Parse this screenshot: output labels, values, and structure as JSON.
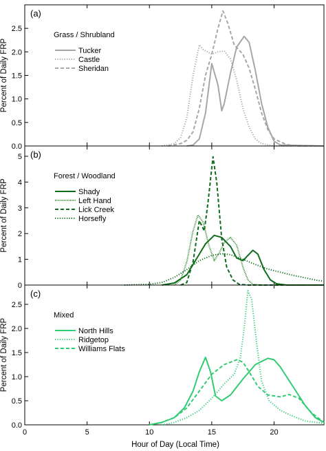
{
  "figure": {
    "xlabel": "Hour of Day (Local Time)",
    "ylabel": "Percent of Daily FRP",
    "x_ticks": [
      "0",
      "5",
      "10",
      "15",
      "20"
    ]
  },
  "chart_data": [
    {
      "type": "line",
      "panel_label": "(a)",
      "category": "Grass / Shrubland",
      "xlabel": "",
      "ylabel": "Percent of Daily FRP",
      "xlim": [
        0,
        24
      ],
      "ylim": [
        0,
        3.0
      ],
      "y_ticks": [
        "0.0",
        "0.5",
        "1.0",
        "1.5",
        "2.0",
        "2.5"
      ],
      "x_ticks": [
        0,
        5,
        10,
        15,
        20
      ],
      "grid": false,
      "legend_position": "upper-left",
      "series": [
        {
          "name": "Tucker",
          "color": "#a6a6a6",
          "dash": "solid",
          "points": [
            [
              13.0,
              0.0
            ],
            [
              13.5,
              0.02
            ],
            [
              14.0,
              0.15
            ],
            [
              14.5,
              0.7
            ],
            [
              15.0,
              1.75
            ],
            [
              15.5,
              1.3
            ],
            [
              15.8,
              0.75
            ],
            [
              16.0,
              0.9
            ],
            [
              16.5,
              1.55
            ],
            [
              17.0,
              2.1
            ],
            [
              17.6,
              2.33
            ],
            [
              18.0,
              2.2
            ],
            [
              18.5,
              1.6
            ],
            [
              19.0,
              0.9
            ],
            [
              19.5,
              0.4
            ],
            [
              20.0,
              0.1
            ],
            [
              20.5,
              0.02
            ],
            [
              24.0,
              0.0
            ]
          ]
        },
        {
          "name": "Castle",
          "color": "#a6a6a6",
          "dash": "dotted",
          "points": [
            [
              11.0,
              0.0
            ],
            [
              12.0,
              0.05
            ],
            [
              12.5,
              0.18
            ],
            [
              13.0,
              0.6
            ],
            [
              13.5,
              1.5
            ],
            [
              14.0,
              2.15
            ],
            [
              14.3,
              2.05
            ],
            [
              15.0,
              1.95
            ],
            [
              15.5,
              2.0
            ],
            [
              16.0,
              2.02
            ],
            [
              16.5,
              1.85
            ],
            [
              17.0,
              1.4
            ],
            [
              17.5,
              0.8
            ],
            [
              18.0,
              0.4
            ],
            [
              18.5,
              0.15
            ],
            [
              19.0,
              0.05
            ],
            [
              20.0,
              0.0
            ],
            [
              24.0,
              0.0
            ]
          ]
        },
        {
          "name": "Sheridan",
          "color": "#a6a6a6",
          "dash": "dashed",
          "points": [
            [
              11.5,
              0.0
            ],
            [
              12.5,
              0.05
            ],
            [
              13.0,
              0.12
            ],
            [
              13.5,
              0.3
            ],
            [
              14.0,
              0.8
            ],
            [
              14.5,
              1.5
            ],
            [
              15.0,
              1.95
            ],
            [
              15.5,
              2.5
            ],
            [
              15.9,
              2.87
            ],
            [
              16.3,
              2.6
            ],
            [
              16.8,
              2.15
            ],
            [
              17.5,
              1.95
            ],
            [
              18.0,
              1.65
            ],
            [
              18.5,
              1.2
            ],
            [
              19.0,
              0.7
            ],
            [
              19.5,
              0.35
            ],
            [
              20.0,
              0.15
            ],
            [
              21.0,
              0.03
            ],
            [
              22.0,
              0.0
            ],
            [
              24.0,
              0.0
            ]
          ]
        }
      ]
    },
    {
      "type": "line",
      "panel_label": "(b)",
      "category": "Forest / Woodland",
      "xlabel": "",
      "ylabel": "Percent of Daily FRP",
      "xlim": [
        0,
        24
      ],
      "ylim": [
        0,
        5.4
      ],
      "y_ticks": [
        "0",
        "1",
        "2",
        "3",
        "4",
        "5"
      ],
      "x_ticks": [
        0,
        5,
        10,
        15,
        20
      ],
      "grid": false,
      "legend_position": "upper-left",
      "series": [
        {
          "name": "Shady",
          "color": "#0d6b1a",
          "dash": "solid",
          "points": [
            [
              11.0,
              0.0
            ],
            [
              12.0,
              0.08
            ],
            [
              13.0,
              0.4
            ],
            [
              14.0,
              1.2
            ],
            [
              14.5,
              1.6
            ],
            [
              15.2,
              1.93
            ],
            [
              15.8,
              1.85
            ],
            [
              16.5,
              1.5
            ],
            [
              17.0,
              1.05
            ],
            [
              17.5,
              0.95
            ],
            [
              18.0,
              1.2
            ],
            [
              18.3,
              1.35
            ],
            [
              18.7,
              1.2
            ],
            [
              19.2,
              0.6
            ],
            [
              19.7,
              0.2
            ],
            [
              20.2,
              0.05
            ],
            [
              21.0,
              0.0
            ],
            [
              24.0,
              0.0
            ]
          ]
        },
        {
          "name": "Left Hand",
          "color": "#2e8a2e",
          "dash": "densedot",
          "points": [
            [
              12.0,
              0.0
            ],
            [
              12.5,
              0.2
            ],
            [
              13.0,
              0.9
            ],
            [
              13.5,
              2.1
            ],
            [
              13.9,
              2.72
            ],
            [
              14.3,
              2.45
            ],
            [
              14.8,
              1.5
            ],
            [
              15.2,
              0.95
            ],
            [
              15.6,
              1.25
            ],
            [
              16.0,
              1.65
            ],
            [
              16.5,
              1.85
            ],
            [
              17.0,
              1.55
            ],
            [
              17.5,
              0.7
            ],
            [
              17.9,
              0.2
            ],
            [
              18.3,
              0.03
            ],
            [
              19.0,
              0.0
            ],
            [
              24.0,
              0.0
            ]
          ]
        },
        {
          "name": "Lick Creek",
          "color": "#0d6b1a",
          "dash": "dashed",
          "points": [
            [
              12.5,
              0.0
            ],
            [
              13.0,
              0.1
            ],
            [
              13.5,
              0.9
            ],
            [
              14.0,
              2.5
            ],
            [
              14.4,
              2.1
            ],
            [
              14.7,
              3.2
            ],
            [
              15.1,
              4.98
            ],
            [
              15.4,
              4.0
            ],
            [
              15.8,
              1.8
            ],
            [
              16.2,
              0.7
            ],
            [
              16.7,
              0.2
            ],
            [
              17.2,
              0.03
            ],
            [
              18.0,
              0.0
            ],
            [
              24.0,
              0.0
            ]
          ]
        },
        {
          "name": "Horsefly",
          "color": "#0d6b1a",
          "dash": "dotted",
          "points": [
            [
              8.0,
              0.0
            ],
            [
              10.0,
              0.03
            ],
            [
              11.0,
              0.1
            ],
            [
              12.0,
              0.3
            ],
            [
              13.0,
              0.6
            ],
            [
              14.0,
              0.95
            ],
            [
              15.0,
              1.15
            ],
            [
              15.8,
              1.22
            ],
            [
              16.5,
              1.18
            ],
            [
              17.5,
              1.0
            ],
            [
              18.5,
              0.8
            ],
            [
              19.5,
              0.62
            ],
            [
              20.5,
              0.5
            ],
            [
              21.5,
              0.38
            ],
            [
              22.5,
              0.28
            ],
            [
              23.5,
              0.18
            ],
            [
              24.0,
              0.15
            ]
          ]
        }
      ]
    },
    {
      "type": "line",
      "panel_label": "(c)",
      "category": "Mixed",
      "xlabel": "Hour of Day (Local Time)",
      "ylabel": "Percent of Daily FRP",
      "xlim": [
        0,
        24
      ],
      "ylim": [
        0,
        2.9
      ],
      "y_ticks": [
        "0.0",
        "0.5",
        "1.0",
        "1.5",
        "2.0",
        "2.5"
      ],
      "x_ticks": [
        0,
        5,
        10,
        15,
        20
      ],
      "grid": false,
      "legend_position": "upper-left",
      "series": [
        {
          "name": "North Hills",
          "color": "#2ecc71",
          "dash": "solid",
          "points": [
            [
              10.0,
              0.0
            ],
            [
              11.0,
              0.05
            ],
            [
              12.0,
              0.15
            ],
            [
              12.8,
              0.35
            ],
            [
              13.5,
              0.7
            ],
            [
              14.0,
              1.1
            ],
            [
              14.5,
              1.4
            ],
            [
              14.9,
              1.1
            ],
            [
              15.3,
              0.6
            ],
            [
              15.8,
              0.5
            ],
            [
              16.5,
              0.62
            ],
            [
              17.5,
              0.95
            ],
            [
              18.5,
              1.25
            ],
            [
              19.5,
              1.38
            ],
            [
              20.0,
              1.35
            ],
            [
              20.5,
              1.2
            ],
            [
              21.5,
              0.8
            ],
            [
              22.5,
              0.4
            ],
            [
              23.3,
              0.15
            ],
            [
              24.0,
              0.05
            ]
          ]
        },
        {
          "name": "Ridgetop",
          "color": "#2ecc71",
          "dash": "dotted",
          "points": [
            [
              11.0,
              0.0
            ],
            [
              12.0,
              0.05
            ],
            [
              13.0,
              0.15
            ],
            [
              14.0,
              0.3
            ],
            [
              15.0,
              0.55
            ],
            [
              16.0,
              0.85
            ],
            [
              16.8,
              1.05
            ],
            [
              17.3,
              1.4
            ],
            [
              17.6,
              2.0
            ],
            [
              17.9,
              2.78
            ],
            [
              18.2,
              2.6
            ],
            [
              18.6,
              1.7
            ],
            [
              19.0,
              0.9
            ],
            [
              19.6,
              0.5
            ],
            [
              20.5,
              0.3
            ],
            [
              21.5,
              0.18
            ],
            [
              22.5,
              0.08
            ],
            [
              24.0,
              0.03
            ]
          ]
        },
        {
          "name": "Williams Flats",
          "color": "#2ecc71",
          "dash": "dashed",
          "points": [
            [
              10.0,
              0.0
            ],
            [
              11.0,
              0.05
            ],
            [
              12.0,
              0.15
            ],
            [
              13.0,
              0.35
            ],
            [
              14.0,
              0.7
            ],
            [
              15.0,
              1.05
            ],
            [
              16.0,
              1.25
            ],
            [
              17.0,
              1.35
            ],
            [
              17.5,
              1.3
            ],
            [
              18.0,
              1.1
            ],
            [
              18.7,
              0.8
            ],
            [
              19.5,
              0.62
            ],
            [
              20.5,
              0.58
            ],
            [
              21.2,
              0.63
            ],
            [
              22.0,
              0.55
            ],
            [
              23.0,
              0.25
            ],
            [
              24.0,
              0.05
            ]
          ]
        }
      ]
    }
  ]
}
